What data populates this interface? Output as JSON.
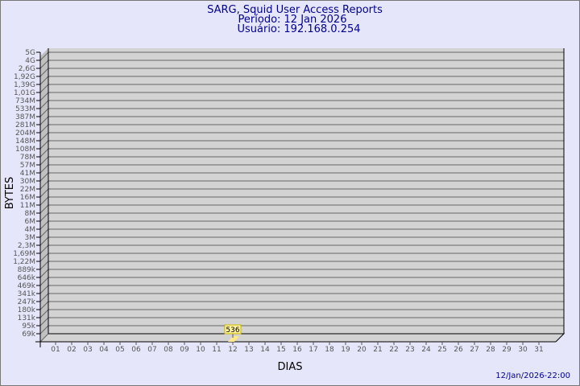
{
  "chart_data": {
    "type": "bar",
    "title": "SARG, Squid User Access Reports",
    "subtitle_period": "Período: 12 Jan 2026",
    "subtitle_user": "Usuário: 192.168.0.254",
    "xlabel": "DIAS",
    "ylabel": "BYTES",
    "y_scale": "log",
    "y_tick_labels": [
      "5G",
      "4G",
      "2,6G",
      "1,92G",
      "1,39G",
      "1,01G",
      "734M",
      "533M",
      "387M",
      "281M",
      "204M",
      "148M",
      "108M",
      "78M",
      "57M",
      "41M",
      "30M",
      "22M",
      "16M",
      "11M",
      "8M",
      "6M",
      "4M",
      "3M",
      "2,3M",
      "1,69M",
      "1,22M",
      "889k",
      "646k",
      "469k",
      "341k",
      "247k",
      "180k",
      "131k",
      "95k",
      "69k"
    ],
    "categories": [
      "01",
      "02",
      "03",
      "04",
      "05",
      "06",
      "07",
      "08",
      "09",
      "10",
      "11",
      "12",
      "13",
      "14",
      "15",
      "16",
      "17",
      "18",
      "19",
      "20",
      "21",
      "22",
      "23",
      "24",
      "25",
      "26",
      "27",
      "28",
      "29",
      "30",
      "31"
    ],
    "values": [
      null,
      null,
      null,
      null,
      null,
      null,
      null,
      null,
      null,
      null,
      null,
      536,
      null,
      null,
      null,
      null,
      null,
      null,
      null,
      null,
      null,
      null,
      null,
      null,
      null,
      null,
      null,
      null,
      null,
      null,
      null
    ],
    "data_labels": [
      {
        "category": "12",
        "text": "536"
      }
    ],
    "grid": true,
    "colors": {
      "background": "#e6e6fa",
      "plot": "#d3d3d3",
      "bar": "#ffe88c",
      "label_bg": "#fff29a",
      "title": "#00008b"
    }
  },
  "footer": {
    "timestamp": "12/Jan/2026-22:00"
  }
}
